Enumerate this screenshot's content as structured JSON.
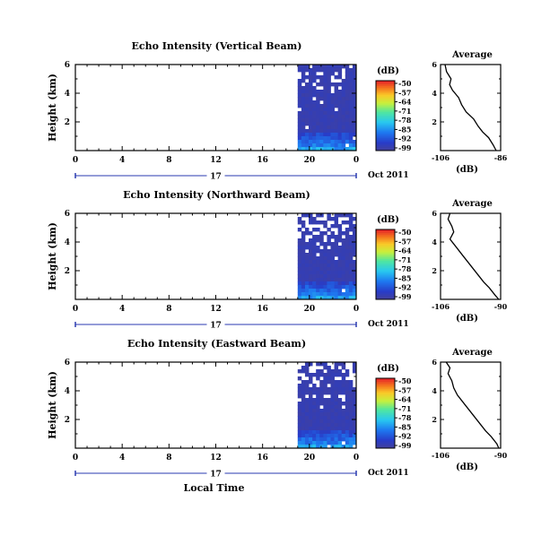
{
  "chart_data": [
    {
      "type": "heatmap",
      "title": "Echo Intensity (Vertical Beam)",
      "ylabel": "Height (km)",
      "y_ticks": [
        "6",
        "4",
        "2"
      ],
      "x_ticks": [
        "0",
        "4",
        "8",
        "12",
        "16",
        "20",
        "0"
      ],
      "xlim": [
        0,
        24
      ],
      "ylim": [
        0,
        6
      ],
      "data_start_hour": 19,
      "day_label": "17",
      "date_label": "Oct 2011",
      "colorbar": {
        "unit": "(dB)",
        "ticks": [
          "-50",
          "-57",
          "-64",
          "-71",
          "-78",
          "-85",
          "-92",
          "-99"
        ],
        "range": [
          -99,
          -50
        ]
      },
      "average": {
        "title": "Average",
        "xlabel": "(dB)",
        "x_ticks": [
          "-106",
          "-86"
        ],
        "xlim": [
          -106,
          -86
        ],
        "y_ticks": [
          "6",
          "4",
          "2"
        ],
        "profile_x": [
          -104.5,
          -104,
          -102.5,
          -103,
          -102,
          -100,
          -99,
          -97.5,
          -95,
          -93.5,
          -92,
          -90,
          -88.5,
          -87.5
        ],
        "profile_y": [
          6.0,
          5.5,
          5.0,
          4.6,
          4.2,
          3.7,
          3.2,
          2.7,
          2.2,
          1.7,
          1.3,
          0.9,
          0.4,
          0.0
        ]
      }
    },
    {
      "type": "heatmap",
      "title": "Echo Intensity (Northward Beam)",
      "ylabel": "Height (km)",
      "y_ticks": [
        "6",
        "4",
        "2"
      ],
      "x_ticks": [
        "0",
        "4",
        "8",
        "12",
        "16",
        "20",
        "0"
      ],
      "xlim": [
        0,
        24
      ],
      "ylim": [
        0,
        6
      ],
      "data_start_hour": 19,
      "day_label": "17",
      "date_label": "Oct 2011",
      "colorbar": {
        "unit": "(dB)",
        "ticks": [
          "-50",
          "-57",
          "-64",
          "-71",
          "-78",
          "-85",
          "-92",
          "-99"
        ],
        "range": [
          -99,
          -50
        ]
      },
      "average": {
        "title": "Average",
        "xlabel": "(dB)",
        "x_ticks": [
          "-106",
          "-90"
        ],
        "xlim": [
          -106,
          -90
        ],
        "y_ticks": [
          "6",
          "4",
          "2"
        ],
        "profile_x": [
          -103.5,
          -104,
          -103,
          -102.5,
          -103.5,
          -102,
          -100.5,
          -99,
          -97.5,
          -96,
          -94.5,
          -93,
          -91.5,
          -90.5
        ],
        "profile_y": [
          6.0,
          5.6,
          5.1,
          4.7,
          4.2,
          3.7,
          3.2,
          2.7,
          2.2,
          1.7,
          1.2,
          0.8,
          0.3,
          0.0
        ]
      }
    },
    {
      "type": "heatmap",
      "title": "Echo Intensity (Eastward Beam)",
      "ylabel": "Height (km)",
      "y_ticks": [
        "6",
        "4",
        "2"
      ],
      "x_ticks": [
        "0",
        "4",
        "8",
        "12",
        "16",
        "20",
        "0"
      ],
      "xlim": [
        0,
        24
      ],
      "ylim": [
        0,
        6
      ],
      "data_start_hour": 19,
      "day_label": "17",
      "date_label": "Oct 2011",
      "xlabel": "Local Time",
      "colorbar": {
        "unit": "(dB)",
        "ticks": [
          "-50",
          "-57",
          "-64",
          "-71",
          "-78",
          "-85",
          "-92",
          "-99"
        ],
        "range": [
          -99,
          -50
        ]
      },
      "average": {
        "title": "Average",
        "xlabel": "(dB)",
        "x_ticks": [
          "-106",
          "-90"
        ],
        "xlim": [
          -106,
          -90
        ],
        "y_ticks": [
          "6",
          "4",
          "2"
        ],
        "profile_x": [
          -104.5,
          -103.5,
          -104,
          -103,
          -102.5,
          -101.5,
          -100,
          -98.5,
          -97,
          -95.5,
          -94,
          -92.5,
          -91,
          -90.5
        ],
        "profile_y": [
          6.0,
          5.6,
          5.2,
          4.7,
          4.2,
          3.7,
          3.2,
          2.7,
          2.2,
          1.7,
          1.2,
          0.8,
          0.3,
          0.0
        ]
      }
    }
  ]
}
